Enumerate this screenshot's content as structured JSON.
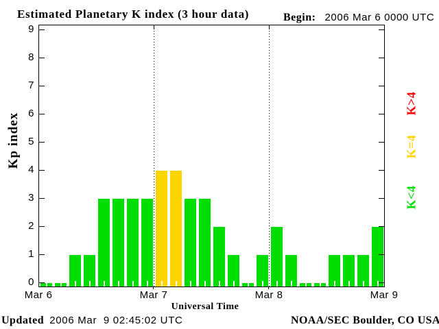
{
  "chart_data": {
    "type": "bar",
    "title": "Estimated Planetary K index (3 hour data)",
    "begin": {
      "label": "Begin:",
      "value": "2006 Mar 6 0000 UTC"
    },
    "xlabel": "Universal Time",
    "ylabel": "Kp index",
    "x_tick_labels": [
      "Mar 6",
      "Mar 7",
      "Mar 8",
      "Mar 9"
    ],
    "y_tick_labels": [
      "0",
      "1",
      "2",
      "3",
      "4",
      "5",
      "6",
      "7",
      "8",
      "9"
    ],
    "ylim": [
      0,
      9
    ],
    "bars_per_day": 8,
    "hours_per_bar": 3,
    "values": [
      0,
      0,
      1,
      1,
      3,
      3,
      3,
      3,
      4,
      4,
      3,
      3,
      2,
      1,
      0,
      1,
      2,
      1,
      0,
      0,
      1,
      1,
      1,
      2
    ],
    "day_values": {
      "Mar 6": [
        0,
        0,
        1,
        1,
        3,
        3,
        3,
        3
      ],
      "Mar 7": [
        4,
        4,
        3,
        3,
        2,
        1,
        0,
        1
      ],
      "Mar 8": [
        2,
        1,
        0,
        0,
        1,
        1,
        1,
        2
      ]
    },
    "colors": {
      "k_below_4": "#00DD00",
      "k_equal_4": "#FFD500",
      "k_above_4": "#FF0000"
    },
    "legend": [
      {
        "label": "K>4",
        "color": "#FF0000"
      },
      {
        "label": "K=4",
        "color": "#FFD500"
      },
      {
        "label": "K<4",
        "color": "#00DD00"
      }
    ],
    "legend_position": "right",
    "grid": "dotted vertical separators at day boundaries"
  },
  "footer": {
    "updated_label": "Updated",
    "updated_value": "2006 Mar  9 02:45:02 UTC",
    "organization": "NOAA/SEC Boulder, CO USA"
  }
}
